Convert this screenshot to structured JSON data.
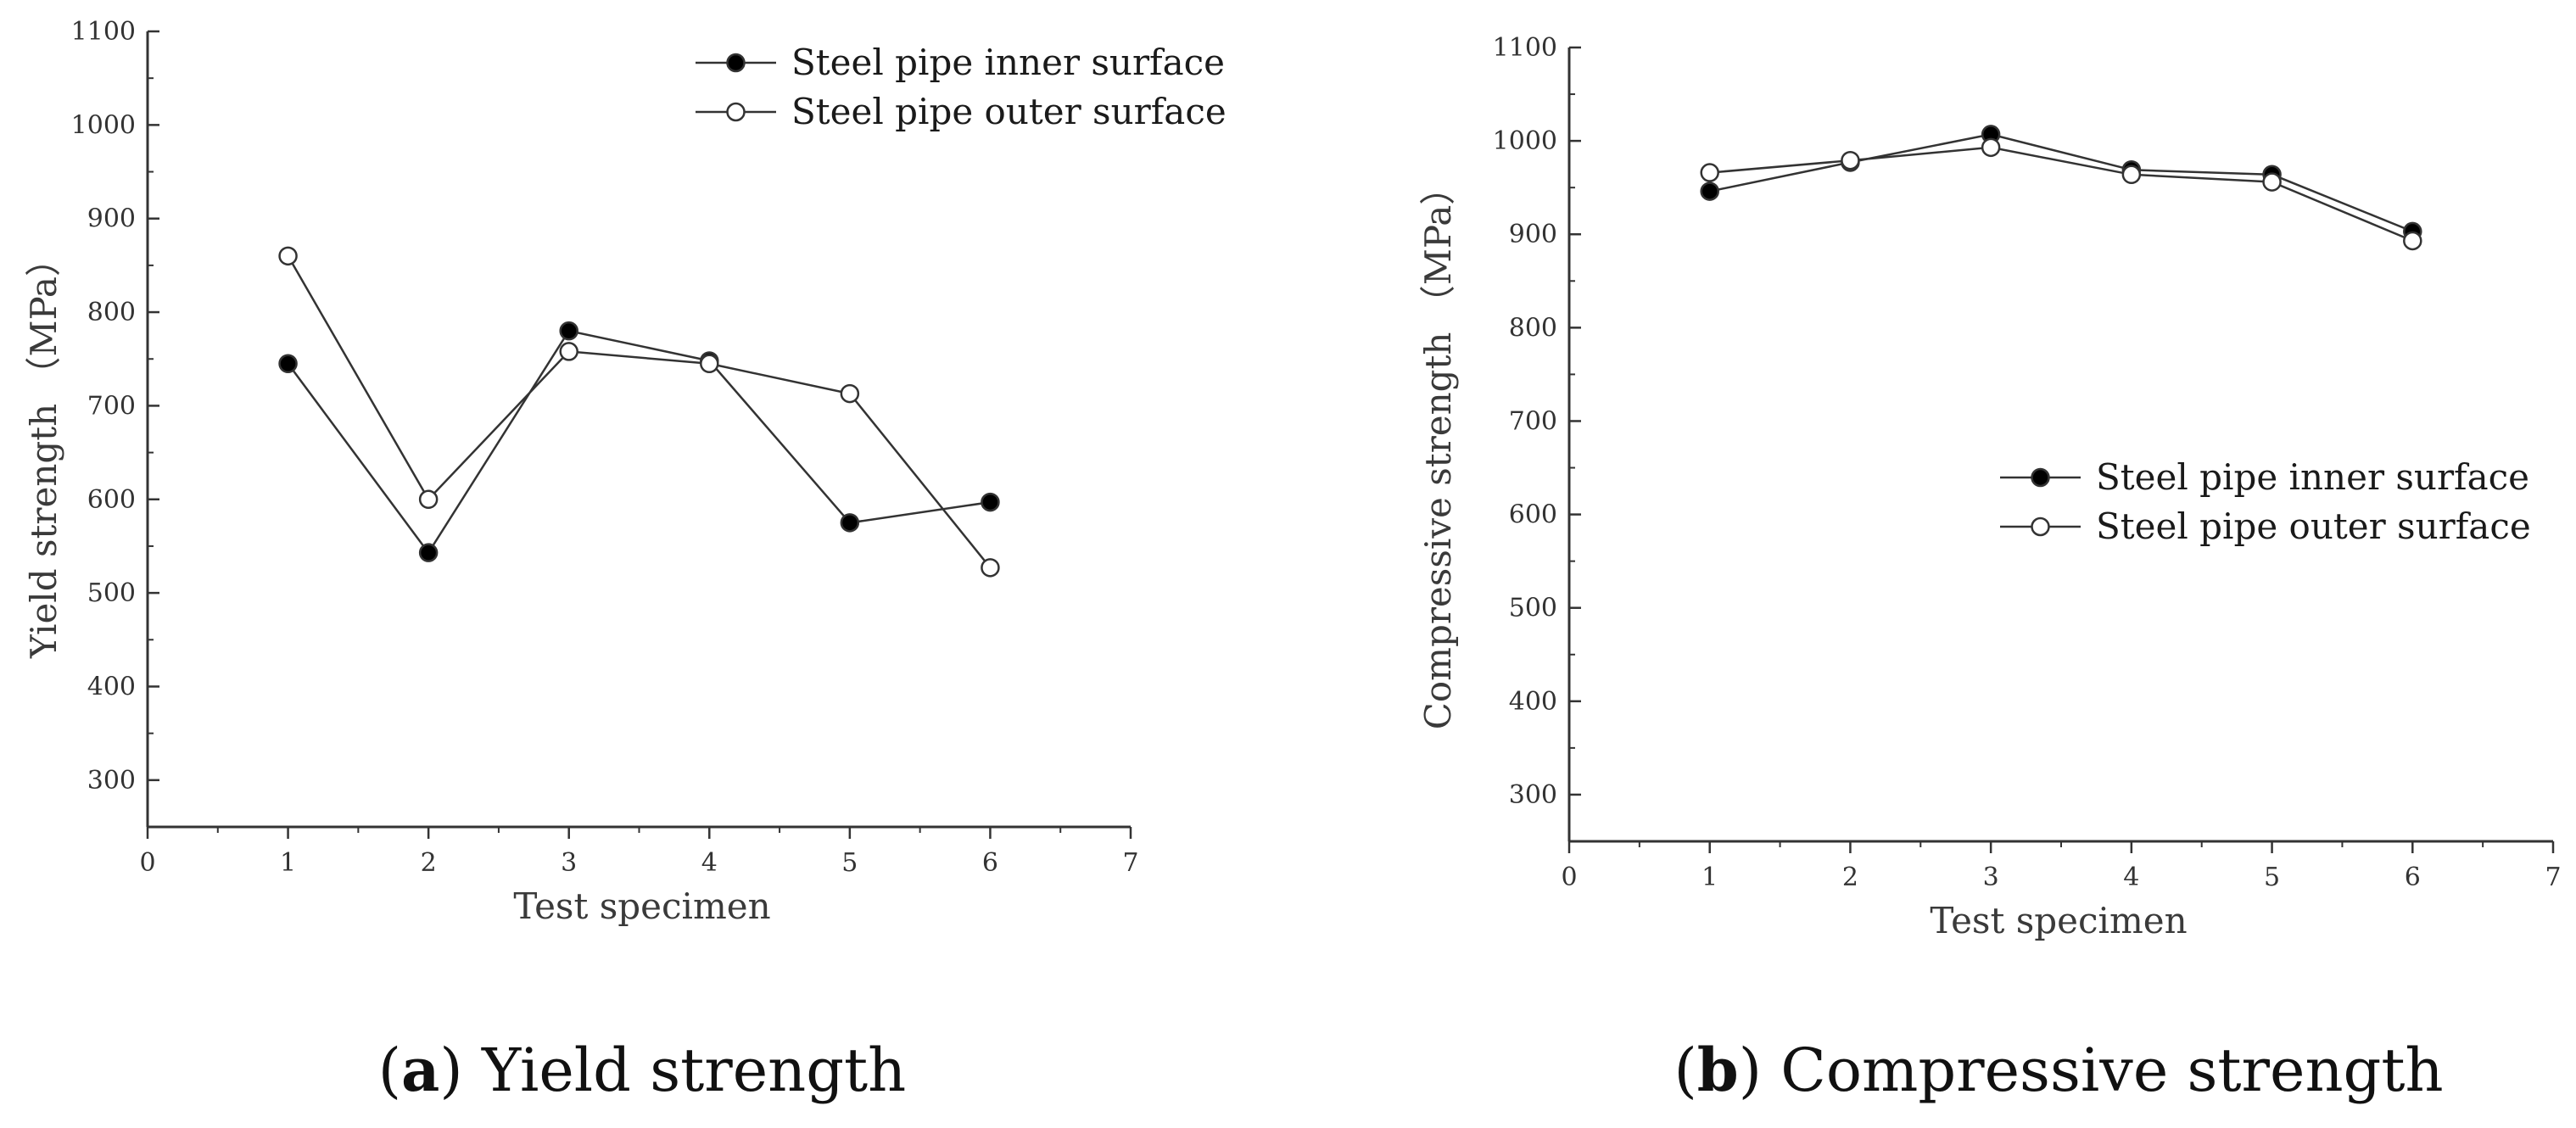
{
  "chart_data": [
    {
      "type": "line",
      "caption_letter": "a",
      "caption_text": "Yield strength",
      "xlabel": "Test specimen",
      "ylabel": "Yield strength （MPa）",
      "xlim": [
        0,
        7
      ],
      "ylim": [
        250,
        1100
      ],
      "xticks": [
        0,
        1,
        2,
        3,
        4,
        5,
        6,
        7
      ],
      "yticks": [
        300,
        400,
        500,
        600,
        700,
        800,
        900,
        1000,
        1100
      ],
      "grid": false,
      "legend_position": "top-right",
      "series": [
        {
          "name": "Steel pipe inner surface",
          "marker": "filled-circle",
          "x": [
            1,
            2,
            3,
            4,
            5,
            6
          ],
          "values": [
            745,
            543,
            780,
            748,
            575,
            597
          ]
        },
        {
          "name": "Steel pipe outer surface",
          "marker": "open-circle",
          "x": [
            1,
            2,
            3,
            4,
            5,
            6
          ],
          "values": [
            860,
            600,
            758,
            745,
            713,
            527
          ]
        }
      ]
    },
    {
      "type": "line",
      "caption_letter": "b",
      "caption_text": "Compressive strength",
      "xlabel": "Test specimen",
      "ylabel": "Compressive strength （MPa）",
      "xlim": [
        0,
        7
      ],
      "ylim": [
        250,
        1100
      ],
      "xticks": [
        0,
        1,
        2,
        3,
        4,
        5,
        6,
        7
      ],
      "yticks": [
        300,
        400,
        500,
        600,
        700,
        800,
        900,
        1000,
        1100
      ],
      "grid": false,
      "legend_position": "center-right",
      "series": [
        {
          "name": "Steel pipe inner surface",
          "marker": "filled-circle",
          "x": [
            1,
            2,
            3,
            4,
            5,
            6
          ],
          "values": [
            946,
            977,
            1007,
            969,
            964,
            903
          ]
        },
        {
          "name": "Steel pipe outer surface",
          "marker": "open-circle",
          "x": [
            1,
            2,
            3,
            4,
            5,
            6
          ],
          "values": [
            966,
            979,
            993,
            964,
            956,
            893
          ]
        }
      ]
    }
  ]
}
